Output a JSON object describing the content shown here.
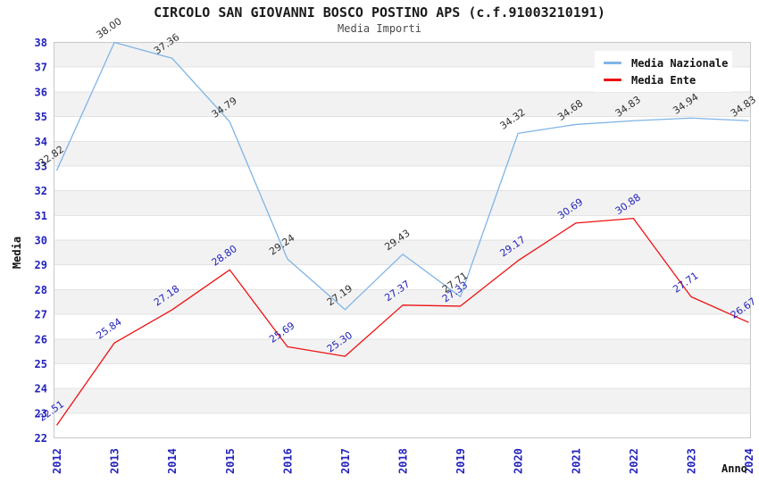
{
  "title": "CIRCOLO SAN GIOVANNI BOSCO POSTINO APS (c.f.91003210191)",
  "subtitle": "Media Importi",
  "legend": {
    "items": [
      {
        "label": "Media Nazionale",
        "color": "#7fb4e6"
      },
      {
        "label": "Media Ente",
        "color": "#ee1111"
      }
    ]
  },
  "axis": {
    "x_title": "Anno",
    "y_title": "Media",
    "tick_color": "#2323bd"
  },
  "chart_data": {
    "type": "line",
    "x": [
      2012,
      2013,
      2014,
      2015,
      2016,
      2017,
      2018,
      2019,
      2020,
      2021,
      2022,
      2023,
      2024
    ],
    "series": [
      {
        "name": "Media Nazionale",
        "color": "#7fb4e6",
        "label_color": "#303030",
        "values": [
          32.82,
          38.0,
          37.36,
          34.79,
          29.24,
          27.19,
          29.43,
          27.71,
          34.32,
          34.68,
          34.83,
          34.94,
          34.83
        ]
      },
      {
        "name": "Media Ente",
        "color": "#ee1111",
        "label_color": "#2323bd",
        "values": [
          22.51,
          25.84,
          27.18,
          28.8,
          25.69,
          25.3,
          27.37,
          27.33,
          29.17,
          30.69,
          30.88,
          27.71,
          26.67
        ]
      }
    ],
    "xlabel": "Anno",
    "ylabel": "Media",
    "ylim": [
      22,
      38
    ],
    "ytick_step": 1,
    "point_labels": true,
    "grid": true,
    "banded_background": true,
    "legend_position": "top-right"
  }
}
